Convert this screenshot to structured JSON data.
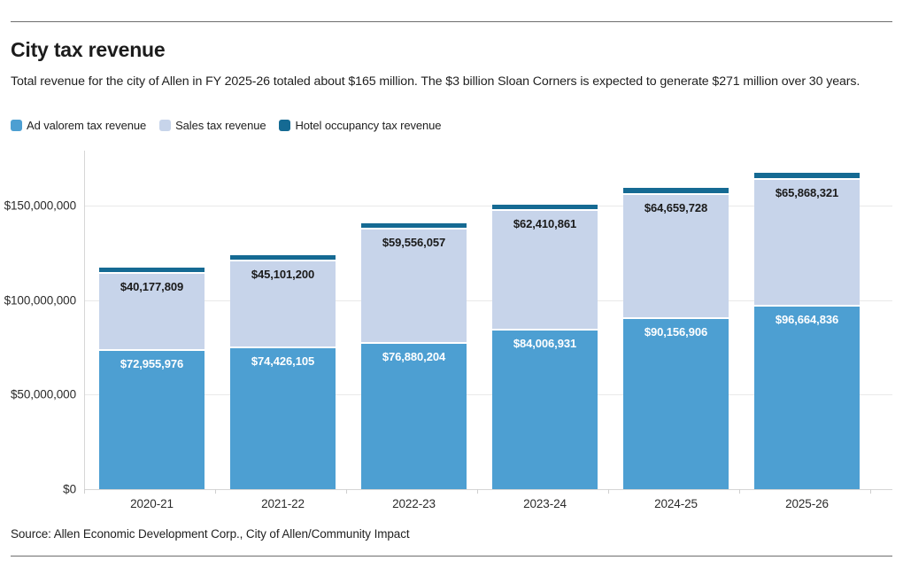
{
  "page": {
    "title": "City tax revenue",
    "subtitle": "Total revenue for the city of Allen in FY 2025-26 totaled about $165 million. The $3 billion Sloan Corners is expected to generate $271 million over 30 years.",
    "source": "Source: Allen Economic Development Corp., City of Allen/Community Impact"
  },
  "legend": [
    {
      "label": "Ad valorem tax revenue",
      "color": "#4d9fd2"
    },
    {
      "label": "Sales tax revenue",
      "color": "#c7d4ea"
    },
    {
      "label": "Hotel occupancy tax revenue",
      "color": "#156a93"
    }
  ],
  "chart_data": {
    "type": "bar",
    "stacked": true,
    "title": "City tax revenue",
    "categories": [
      "2020-21",
      "2021-22",
      "2022-23",
      "2023-24",
      "2024-25",
      "2025-26"
    ],
    "series": [
      {
        "name": "Ad valorem tax revenue",
        "color": "#4d9fd2",
        "values": [
          72955976,
          74426105,
          76880204,
          84006931,
          90156906,
          96664836
        ],
        "labels": [
          "$72,955,976",
          "$74,426,105",
          "$76,880,204",
          "$84,006,931",
          "$90,156,906",
          "$96,664,836"
        ],
        "label_color": "#ffffff"
      },
      {
        "name": "Sales tax revenue",
        "color": "#c7d4ea",
        "values": [
          40177809,
          45101200,
          59556057,
          62410861,
          64659728,
          65868321
        ],
        "labels": [
          "$40,177,809",
          "$45,101,200",
          "$59,556,057",
          "$62,410,861",
          "$64,659,728",
          "$65,868,321"
        ],
        "label_color": "#1a1a1a"
      },
      {
        "name": "Hotel occupancy tax revenue",
        "color": "#156a93",
        "values": [
          2200000,
          2200000,
          2300000,
          2300000,
          2500000,
          2700000
        ],
        "values_estimated_from_pixels": true,
        "labels": [
          "",
          "",
          "",
          "",
          "",
          ""
        ],
        "label_color": "#ffffff"
      }
    ],
    "y_ticks": [
      {
        "value": 0,
        "label": "$0"
      },
      {
        "value": 50000000,
        "label": "$50,000,000"
      },
      {
        "value": 100000000,
        "label": "$100,000,000"
      },
      {
        "value": 150000000,
        "label": "$150,000,000"
      }
    ],
    "ylim": [
      0,
      179000000
    ],
    "grid": "horizontal",
    "legend_position": "top"
  }
}
